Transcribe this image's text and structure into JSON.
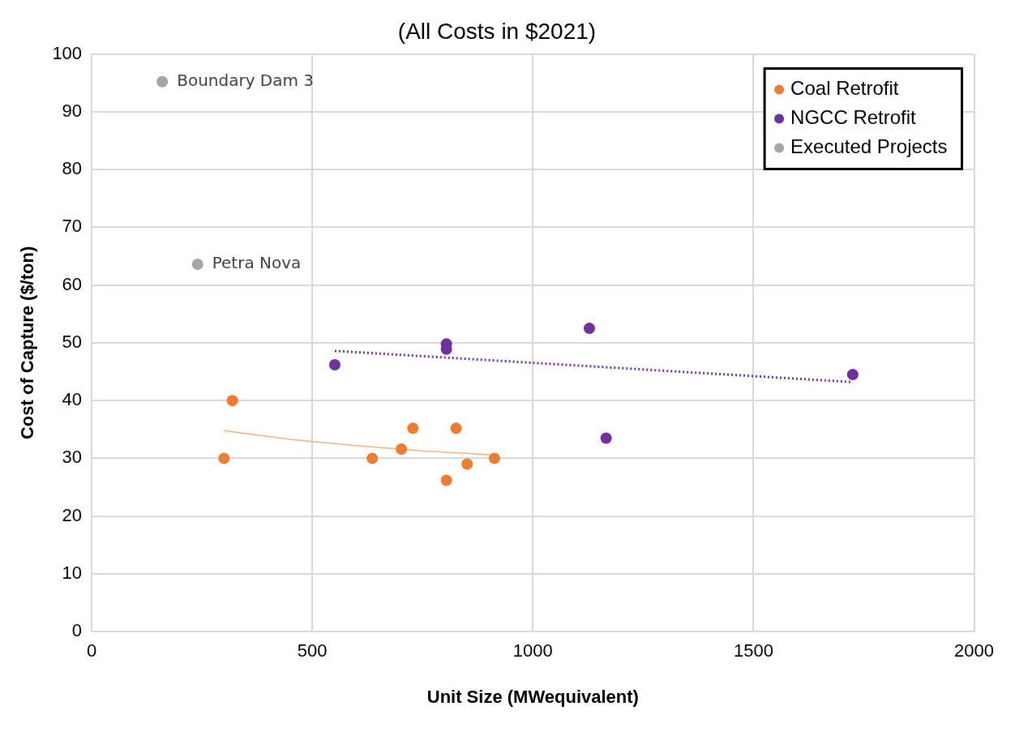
{
  "chart_data": {
    "type": "scatter",
    "title": "(All Costs in $2021)",
    "xlabel": "Unit Size (MWequivalent)",
    "ylabel": "Cost of Capture ($/ton)",
    "xlim": [
      0,
      2000
    ],
    "xticks": [
      0,
      500,
      1000,
      1500,
      2000
    ],
    "ylim": [
      0,
      100
    ],
    "yticks": [
      0,
      10,
      20,
      30,
      40,
      50,
      60,
      70,
      80,
      90,
      100
    ],
    "grid": true,
    "legend": "top right",
    "series": [
      {
        "name": "Coal Retrofit",
        "color": "#ed7d31",
        "marker": "circle",
        "x": [
          319,
          300,
          636,
          702,
          728,
          826,
          804,
          851,
          913
        ],
        "values": [
          40,
          30,
          30,
          31.6,
          35.2,
          35.2,
          26.2,
          29,
          30
        ]
      },
      {
        "name": "NGCC Retrofit",
        "color": "#7030a0",
        "marker": "circle",
        "x": [
          551,
          804,
          804,
          1128,
          1166,
          1725
        ],
        "values": [
          46.2,
          49.8,
          48.9,
          52.5,
          33.5,
          44.5
        ]
      },
      {
        "name": "Executed Projects",
        "color": "#a5a5a5",
        "marker": "circle",
        "x": [
          160,
          240
        ],
        "values": [
          95.2,
          63.6
        ]
      },
      {
        "type": "line",
        "color": "#f4b183",
        "line_style": "solid",
        "marker": "none",
        "x": [
          300,
          450,
          600,
          750,
          913
        ],
        "values": [
          34.8,
          33.3,
          32.2,
          31.3,
          30.6
        ]
      },
      {
        "type": "line",
        "color": "#7030a0",
        "line_style": "dotted",
        "marker": "none",
        "x": [
          551,
          1725
        ],
        "values": [
          48.6,
          43.2
        ]
      }
    ],
    "annotations": [
      {
        "text": "Boundary Dam 3",
        "x": 160,
        "y": 95.2
      },
      {
        "text": "Petra Nova",
        "x": 240,
        "y": 63.6
      }
    ]
  }
}
